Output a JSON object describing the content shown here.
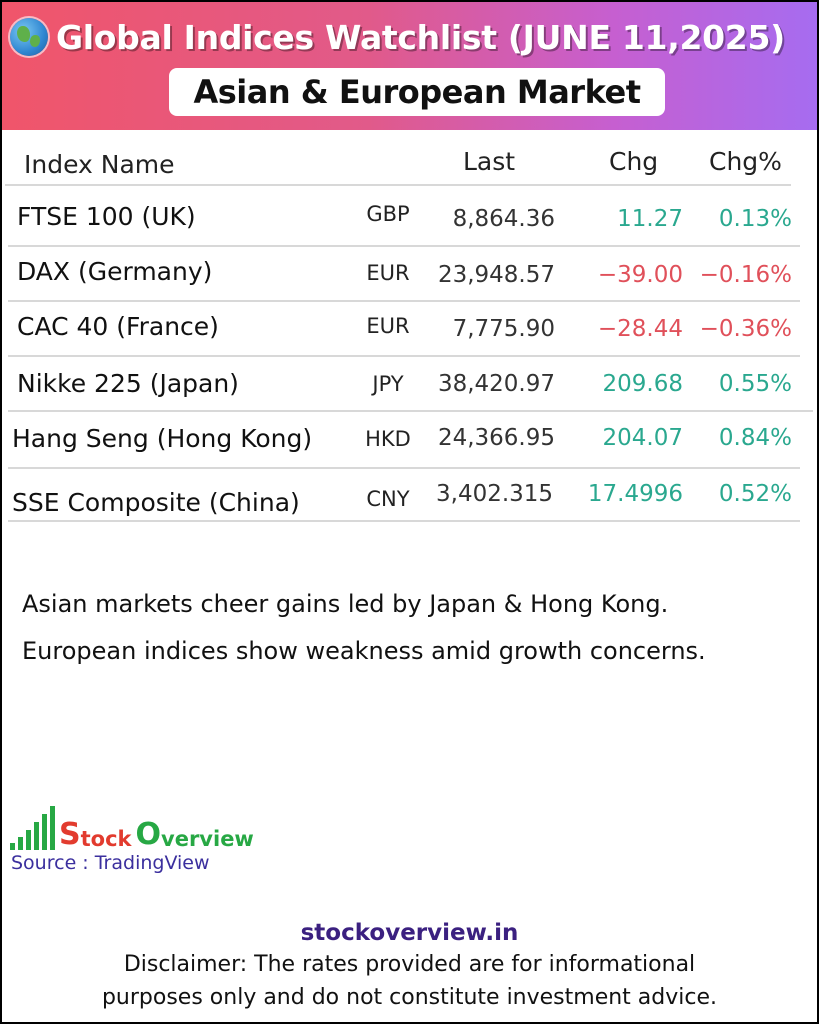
{
  "header": {
    "title": "Global Indices Watchlist (JUNE 11,2025)",
    "subtitle": "Asian & European Market",
    "colors": {
      "gradient_start": "#f0556a",
      "gradient_end": "#a66cf0"
    },
    "icon": "globe-icon"
  },
  "table": {
    "columns": {
      "name": "Index Name",
      "last": "Last",
      "chg": "Chg",
      "chg_pct": "Chg%"
    },
    "rows": [
      {
        "name": "FTSE 100 (UK)",
        "currency": "GBP",
        "last": "8,864.36",
        "chg": "11.27",
        "chg_pct": "0.13%",
        "direction": "up"
      },
      {
        "name": "DAX (Germany)",
        "currency": "EUR",
        "last": "23,948.57",
        "chg": "−39.00",
        "chg_pct": "−0.16%",
        "direction": "down"
      },
      {
        "name": "CAC 40 (France)",
        "currency": "EUR",
        "last": "7,775.90",
        "chg": "−28.44",
        "chg_pct": "−0.36%",
        "direction": "down"
      },
      {
        "name": "Nikke 225 (Japan)",
        "currency": "JPY",
        "last": "38,420.97",
        "chg": "209.68",
        "chg_pct": "0.55%",
        "direction": "up"
      },
      {
        "name": "Hang Seng (Hong Kong)",
        "currency": "HKD",
        "last": "24,366.95",
        "chg": "204.07",
        "chg_pct": "0.84%",
        "direction": "up"
      },
      {
        "name": "SSE Composite (China)",
        "currency": "CNY",
        "last": "3,402.3159",
        "chg": "17.4996",
        "chg_pct": "0.52%",
        "direction": "up"
      }
    ],
    "colors": {
      "positive": "#2aa88f",
      "negative": "#e0505a"
    }
  },
  "notes": [
    "Asian markets cheer gains led by Japan & Hong Kong.",
    "European indices show weakness amid growth concerns."
  ],
  "branding": {
    "logo_s": "S",
    "logo_tock": "tock",
    "logo_o": "O",
    "logo_verview": "verview",
    "source": "Source : TradingView",
    "site": "stockoverview.in"
  },
  "disclaimer": {
    "line1": "Disclaimer: The rates provided are for informational",
    "line2": "purposes only and do not constitute investment advice."
  }
}
